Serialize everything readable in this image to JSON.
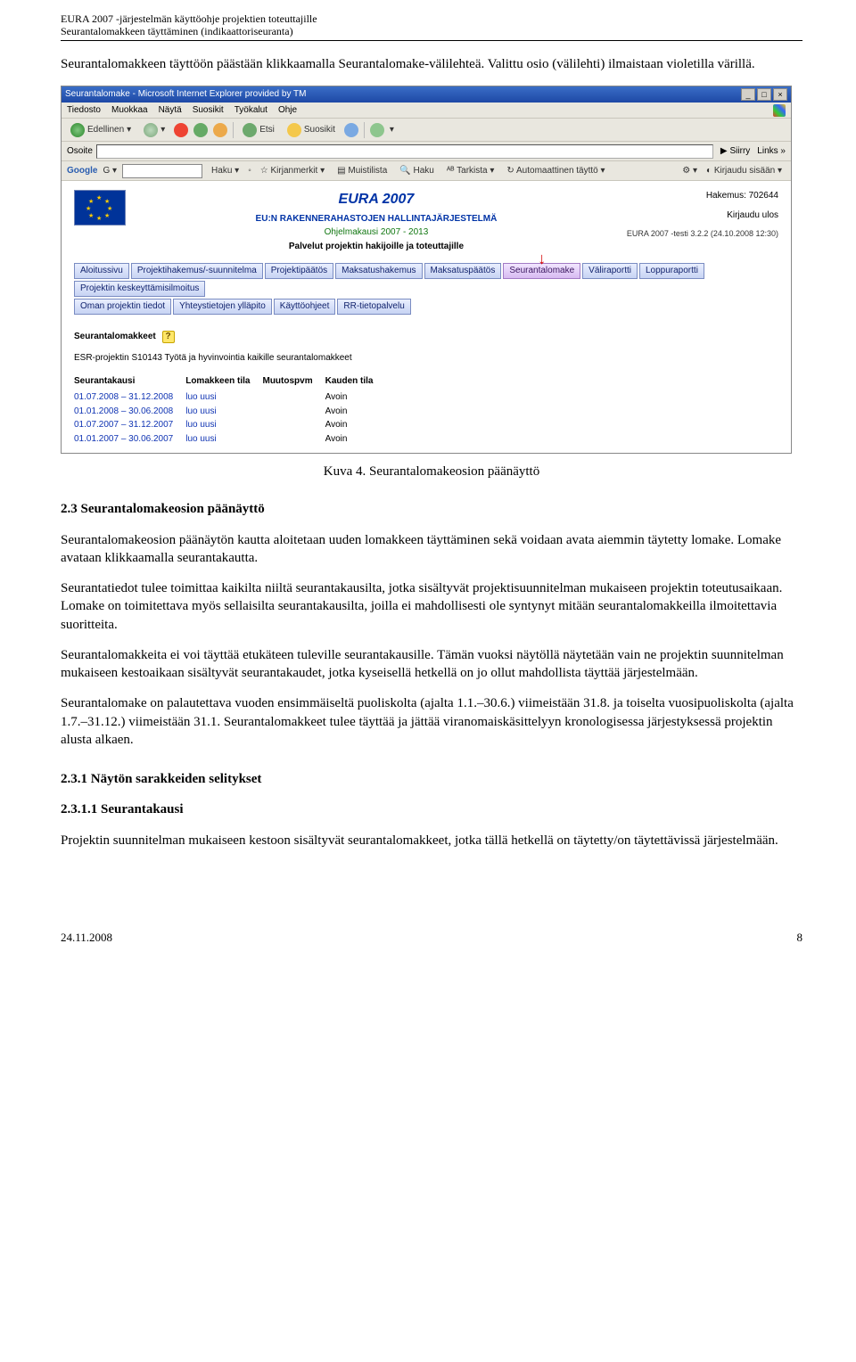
{
  "doc_header": {
    "line1": "EURA 2007 -järjestelmän käyttöohje projektien toteuttajille",
    "line2": "Seurantalomakkeen täyttäminen (indikaattoriseuranta)"
  },
  "intro": "Seurantalomakkeen täyttöön päästään klikkaamalla Seurantalomake-välilehteä. Valittu osio (välilehti) ilmaistaan violetilla värillä.",
  "screenshot": {
    "titlebar": "Seurantalomake - Microsoft Internet Explorer provided by TM",
    "window_btns": [
      "_",
      "□",
      "×"
    ],
    "menu": [
      "Tiedosto",
      "Muokkaa",
      "Näytä",
      "Suosikit",
      "Työkalut",
      "Ohje"
    ],
    "toolbar": {
      "back": "Edellinen",
      "search": "Etsi",
      "fav": "Suosikit"
    },
    "address": {
      "label": "Osoite",
      "go": "Siirry",
      "links": "Links"
    },
    "google": {
      "brand": "Google",
      "g": "G",
      "haku": "Haku",
      "kirjanmerkit": "Kirjanmerkit",
      "muistilista": "Muistilista",
      "haku2": "Haku",
      "tarkista": "Tarkista",
      "auto": "Automaattinen täyttö",
      "kirjaudu": "Kirjaudu sisään"
    },
    "eura": {
      "title": "EURA 2007",
      "subtitle": "EU:N RAKENNERAHASTOJEN HALLINTAJÄRJESTELMÄ",
      "period": "Ohjelmakausi 2007 - 2013",
      "services": "Palvelut projektin hakijoille ja toteuttajille",
      "hakemus": "Hakemus: 702644",
      "logout": "Kirjaudu ulos",
      "version": "EURA 2007 -testi 3.2.2 (24.10.2008 12:30)"
    },
    "nav1": [
      "Aloitussivu",
      "Projektihakemus/-suunnitelma",
      "Projektipäätös",
      "Maksatushakemus",
      "Maksatuspäätös",
      "Seurantalomake",
      "Väliraportti",
      "Loppuraportti",
      "Projektin keskeyttämisilmoitus"
    ],
    "nav2": [
      "Oman projektin tiedot",
      "Yhteystietojen ylläpito",
      "Käyttöohjeet",
      "RR-tietopalvelu"
    ],
    "section_title": "Seurantalomakkeet",
    "project_line": "ESR-projektin S10143 Työtä ja hyvinvointia kaikille seurantalomakkeet",
    "table": {
      "columns": [
        "Seurantakausi",
        "Lomakkeen tila",
        "Muutospvm",
        "Kauden tila"
      ],
      "rows": [
        [
          "01.07.2008 – 31.12.2008",
          "luo uusi",
          "",
          "Avoin"
        ],
        [
          "01.01.2008 – 30.06.2008",
          "luo uusi",
          "",
          "Avoin"
        ],
        [
          "01.07.2007 – 31.12.2007",
          "luo uusi",
          "",
          "Avoin"
        ],
        [
          "01.01.2007 – 30.06.2007",
          "luo uusi",
          "",
          "Avoin"
        ]
      ]
    },
    "colors": {
      "titlebar_top": "#3a6ec7",
      "titlebar_bottom": "#1e48a5",
      "toolbar_bg": "#e9e7df",
      "nav_bg_top": "#e9efff",
      "nav_bg_bottom": "#c7d3f3",
      "nav_selected_top": "#f2e6ff",
      "nav_selected_bottom": "#d7baf1",
      "eura_blue": "#0033a6",
      "eu_flag_bg": "#003399",
      "eu_star": "#ffcc00",
      "link_blue": "#1034b3"
    }
  },
  "caption": "Kuva 4. Seurantalomakeosion päänäyttö",
  "h2": "2.3   Seurantalomakeosion päänäyttö",
  "p1": "Seurantalomakeosion päänäytön kautta aloitetaan uuden lomakkeen täyttäminen sekä voidaan avata aiemmin täytetty lomake. Lomake avataan klikkaamalla seurantakautta.",
  "p2": "Seurantatiedot tulee toimittaa kaikilta niiltä seurantakausilta, jotka sisältyvät projektisuunnitelman mukaiseen projektin toteutusaikaan. Lomake on toimitettava myös sellaisilta seurantakausilta, joilla ei mahdollisesti ole syntynyt mitään seurantalomakkeilla ilmoitettavia suoritteita.",
  "p3": "Seurantalomakkeita ei voi täyttää etukäteen tuleville seurantakausille. Tämän vuoksi näytöllä näytetään vain ne projektin suunnitelman mukaiseen kestoaikaan sisältyvät seurantakaudet, jotka kyseisellä hetkellä on jo ollut mahdollista täyttää järjestelmään.",
  "p4": "Seurantalomake on palautettava vuoden ensimmäiseltä puoliskolta (ajalta 1.1.–30.6.) viimeistään 31.8. ja toiselta vuosipuoliskolta (ajalta 1.7.–31.12.) viimeistään 31.1. Seurantalomakkeet tulee täyttää ja jättää viranomaiskäsittelyyn kronologisessa järjestyksessä projektin alusta alkaen.",
  "h3": "2.3.1   Näytön sarakkeiden selitykset",
  "h4": "2.3.1.1  Seurantakausi",
  "p5": "Projektin suunnitelman mukaiseen kestoon sisältyvät seurantalomakkeet, jotka tällä hetkellä on täytetty/on täytettävissä järjestelmään.",
  "footer": {
    "date": "24.11.2008",
    "page": "8"
  }
}
